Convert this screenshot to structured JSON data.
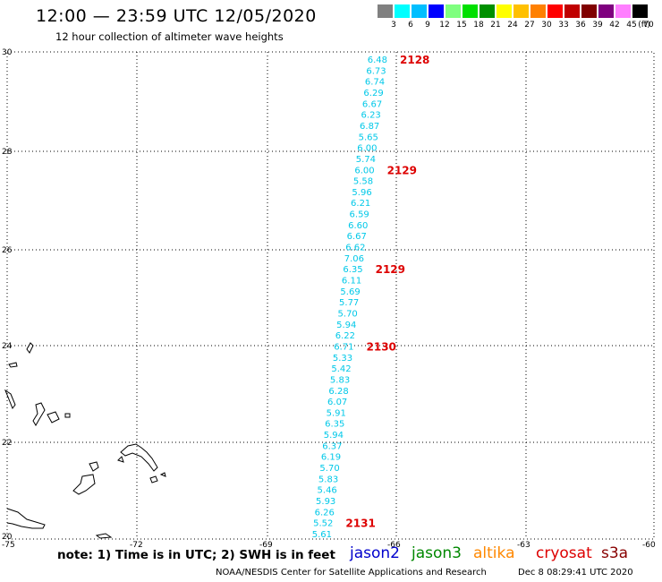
{
  "header": {
    "title": "12:00 — 23:59 UTC 12/05/2020",
    "subtitle": "12 hour collection of altimeter wave heights"
  },
  "color_scale": {
    "unit": "(ft)",
    "swatches": [
      "#808080",
      "#00ffff",
      "#00bfff",
      "#0000ff",
      "#7fff7f",
      "#00e000",
      "#009000",
      "#ffff00",
      "#ffc000",
      "#ff8000",
      "#ff0000",
      "#c00000",
      "#800000",
      "#7f007f",
      "#ff7fff",
      "#000000"
    ],
    "labels": [
      "3",
      "6",
      "9",
      "12",
      "15",
      "18",
      "21",
      "24",
      "27",
      "30",
      "33",
      "36",
      "39",
      "42",
      "45",
      "70"
    ]
  },
  "axes": {
    "lat_labels": [
      "30",
      "28",
      "26",
      "24",
      "22",
      "20"
    ],
    "lon_labels": [
      "-75",
      "-72",
      "-69",
      "-66",
      "-63",
      "-60"
    ]
  },
  "track": {
    "color": "#00c8e8",
    "values": [
      "6.48",
      "6.73",
      "6.74",
      "6.29",
      "6.67",
      "6.23",
      "6.87",
      "5.65",
      "6.00",
      "5.74",
      "6.00",
      "5.58",
      "5.96",
      "6.21",
      "6.59",
      "6.60",
      "6.67",
      "6.62",
      "7.06",
      "6.35",
      "6.11",
      "5.69",
      "5.77",
      "5.70",
      "5.94",
      "6.22",
      "6.71",
      "5.33",
      "5.42",
      "5.83",
      "6.28",
      "6.07",
      "5.91",
      "6.35",
      "5.94",
      "6.37",
      "6.19",
      "5.70",
      "5.83",
      "5.46",
      "5.93",
      "6.26",
      "5.52",
      "5.61"
    ]
  },
  "time_labels": {
    "color": "#dd0000",
    "items": [
      "2128",
      "2129",
      "2129",
      "2130",
      "2131"
    ]
  },
  "footer": {
    "note": "note: 1) Time is in UTC; 2) SWH is in feet",
    "satellites": [
      {
        "name": "jason2",
        "color": "#0000cc"
      },
      {
        "name": "jason3",
        "color": "#008800"
      },
      {
        "name": "altika",
        "color": "#ff8800"
      },
      {
        "name": "cryosat",
        "color": "#dd0000"
      },
      {
        "name": "s3a",
        "color": "#880000"
      }
    ],
    "credit": "NOAA/NESDIS Center for Satellite Applications and Research",
    "timestamp": "Dec  8 08:29:41 UTC 2020"
  }
}
